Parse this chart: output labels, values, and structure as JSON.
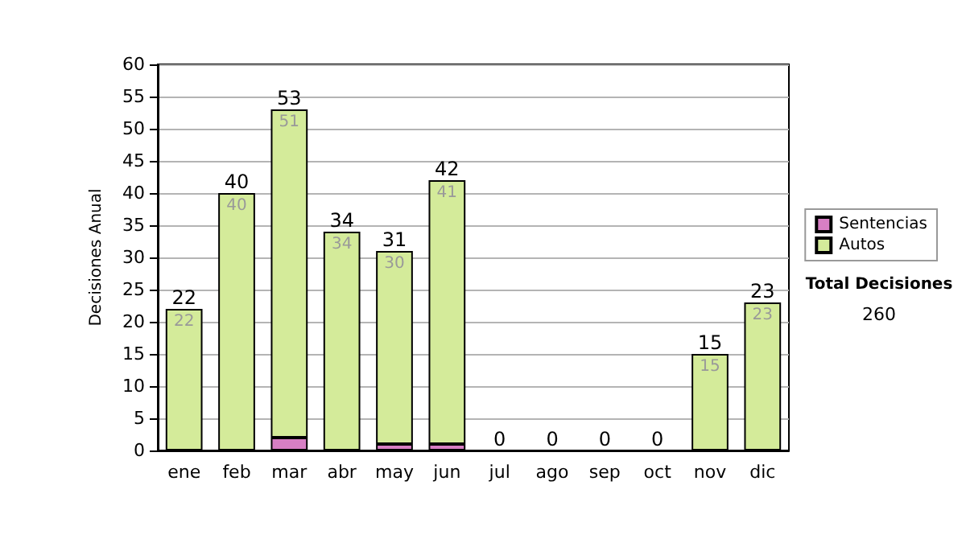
{
  "chart_data": {
    "type": "bar",
    "stacked": true,
    "ylabel": "Decisiones Anual",
    "categories": [
      "ene",
      "feb",
      "mar",
      "abr",
      "may",
      "jun",
      "jul",
      "ago",
      "sep",
      "oct",
      "nov",
      "dic"
    ],
    "series": [
      {
        "name": "Sentencias",
        "color": "#d77fc4",
        "values": [
          0,
          0,
          2,
          0,
          1,
          1,
          0,
          0,
          0,
          0,
          0,
          0
        ]
      },
      {
        "name": "Autos",
        "color": "#d4eb9a",
        "values": [
          22,
          40,
          51,
          34,
          30,
          41,
          0,
          0,
          0,
          0,
          15,
          23
        ],
        "value_labels": [
          "22",
          "40",
          "51",
          "34",
          "30",
          "41",
          null,
          null,
          null,
          null,
          "15",
          "23"
        ]
      }
    ],
    "totals": [
      "22",
      "40",
      "53",
      "34",
      "31",
      "42",
      "0",
      "0",
      "0",
      "0",
      "15",
      "23"
    ],
    "ylim": [
      0,
      60
    ],
    "yticks": [
      0,
      5,
      10,
      15,
      20,
      25,
      30,
      35,
      40,
      45,
      50,
      55,
      60
    ],
    "grid": "y",
    "legend": "right",
    "annotations": [
      "Total Decisiones",
      "260"
    ]
  }
}
